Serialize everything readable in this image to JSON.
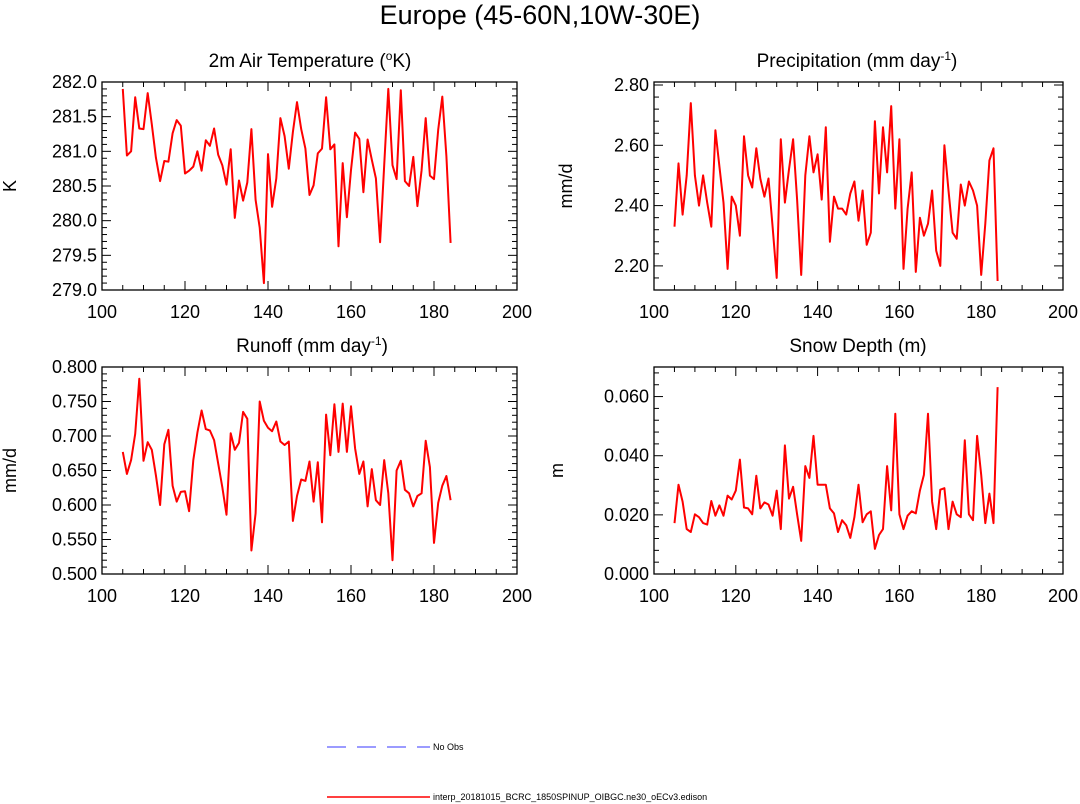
{
  "figure": {
    "title": "Europe (45-60N,10W-30E)",
    "legend": [
      {
        "label": "No Obs",
        "color": "#7a7aff",
        "style": "dashed"
      },
      {
        "label": "interp_20181015_BCRC_1850SPINUP_OIBGC.ne30_oECv3.edison",
        "color": "#ff0000",
        "style": "solid"
      }
    ]
  },
  "chart_data": [
    {
      "type": "line",
      "title": "2m Air Temperature (ºK)",
      "title_main": "2m Air Temperature (",
      "title_sup": "o",
      "title_tail": "K)",
      "ylabel": "K",
      "xlim": [
        100,
        200
      ],
      "ylim": [
        279.0,
        282.0
      ],
      "xticks": [
        100,
        120,
        140,
        160,
        180,
        200
      ],
      "yticks": [
        "279.0",
        "279.5",
        "280.0",
        "280.5",
        "281.0",
        "281.5",
        "282.0"
      ],
      "series": [
        {
          "color": "#ff0000",
          "x_start": 105,
          "values": [
            281.9,
            280.94,
            281.0,
            281.78,
            281.33,
            281.32,
            281.84,
            281.39,
            280.91,
            280.57,
            280.86,
            280.85,
            281.26,
            281.45,
            281.37,
            280.68,
            280.72,
            280.78,
            281.0,
            280.72,
            281.16,
            281.08,
            281.33,
            280.95,
            280.8,
            280.52,
            281.03,
            280.04,
            280.58,
            280.29,
            280.55,
            281.32,
            280.3,
            279.9,
            279.1,
            280.96,
            280.2,
            280.61,
            281.48,
            281.22,
            280.75,
            281.28,
            281.71,
            281.32,
            281.04,
            280.37,
            280.51,
            280.97,
            281.04,
            281.78,
            281.03,
            281.1,
            279.63,
            280.83,
            280.05,
            280.73,
            281.27,
            281.18,
            280.41,
            281.17,
            280.88,
            280.61,
            279.69,
            280.8,
            281.9,
            280.8,
            280.6,
            281.88,
            280.57,
            280.5,
            280.92,
            280.21,
            280.73,
            281.48,
            280.65,
            280.6,
            281.31,
            281.79,
            280.93,
            279.68
          ]
        }
      ]
    },
    {
      "type": "line",
      "title": "Precipitation (mm day⁻¹)",
      "title_main": "Precipitation (mm day",
      "title_sup": "-1",
      "title_tail": ")",
      "ylabel": "mm/d",
      "xlim": [
        100,
        200
      ],
      "ylim": [
        2.12,
        2.81
      ],
      "xticks": [
        100,
        120,
        140,
        160,
        180,
        200
      ],
      "yticks": [
        "2.20",
        "2.40",
        "2.60",
        "2.80"
      ],
      "series": [
        {
          "color": "#ff0000",
          "x_start": 105,
          "values": [
            2.33,
            2.54,
            2.37,
            2.5,
            2.74,
            2.5,
            2.4,
            2.5,
            2.41,
            2.33,
            2.65,
            2.53,
            2.41,
            2.19,
            2.43,
            2.4,
            2.3,
            2.63,
            2.5,
            2.46,
            2.59,
            2.49,
            2.43,
            2.49,
            2.33,
            2.16,
            2.62,
            2.41,
            2.52,
            2.62,
            2.42,
            2.17,
            2.5,
            2.63,
            2.51,
            2.57,
            2.42,
            2.66,
            2.28,
            2.43,
            2.39,
            2.39,
            2.37,
            2.44,
            2.48,
            2.35,
            2.45,
            2.27,
            2.31,
            2.68,
            2.44,
            2.66,
            2.51,
            2.73,
            2.39,
            2.62,
            2.19,
            2.39,
            2.51,
            2.18,
            2.36,
            2.3,
            2.34,
            2.45,
            2.25,
            2.2,
            2.6,
            2.45,
            2.31,
            2.29,
            2.47,
            2.4,
            2.48,
            2.45,
            2.4,
            2.17,
            2.34,
            2.55,
            2.59,
            2.15
          ]
        }
      ]
    },
    {
      "type": "line",
      "title": "Runoff (mm day⁻¹)",
      "title_main": "Runoff (mm day",
      "title_sup": "-1",
      "title_tail": ")",
      "ylabel": "mm/d",
      "xlim": [
        100,
        200
      ],
      "ylim": [
        0.5,
        0.8
      ],
      "xticks": [
        100,
        120,
        140,
        160,
        180,
        200
      ],
      "yticks": [
        "0.500",
        "0.550",
        "0.600",
        "0.650",
        "0.700",
        "0.750",
        "0.800"
      ],
      "series": [
        {
          "color": "#ff0000",
          "x_start": 105,
          "values": [
            0.677,
            0.645,
            0.665,
            0.703,
            0.783,
            0.664,
            0.691,
            0.68,
            0.643,
            0.6,
            0.688,
            0.709,
            0.628,
            0.605,
            0.619,
            0.62,
            0.591,
            0.665,
            0.705,
            0.737,
            0.71,
            0.708,
            0.694,
            0.66,
            0.626,
            0.586,
            0.704,
            0.68,
            0.69,
            0.735,
            0.725,
            0.534,
            0.588,
            0.75,
            0.722,
            0.712,
            0.707,
            0.721,
            0.692,
            0.687,
            0.692,
            0.577,
            0.613,
            0.637,
            0.635,
            0.663,
            0.605,
            0.662,
            0.575,
            0.731,
            0.672,
            0.746,
            0.677,
            0.747,
            0.677,
            0.743,
            0.682,
            0.645,
            0.663,
            0.598,
            0.652,
            0.607,
            0.6,
            0.665,
            0.617,
            0.52,
            0.65,
            0.664,
            0.622,
            0.617,
            0.598,
            0.613,
            0.617,
            0.693,
            0.655,
            0.545,
            0.603,
            0.628,
            0.642,
            0.607
          ]
        }
      ]
    },
    {
      "type": "line",
      "title": "Snow Depth (m)",
      "title_main": "Snow Depth (m)",
      "title_sup": "",
      "title_tail": "",
      "ylabel": "m",
      "xlim": [
        100,
        200
      ],
      "ylim": [
        0.0,
        0.07
      ],
      "xticks": [
        100,
        120,
        140,
        160,
        180,
        200
      ],
      "yticks": [
        "0.000",
        "0.020",
        "0.040",
        "0.060"
      ],
      "series": [
        {
          "color": "#ff0000",
          "x_start": 105,
          "values": [
            0.0172,
            0.0302,
            0.0245,
            0.0152,
            0.0142,
            0.0202,
            0.0192,
            0.0172,
            0.0167,
            0.0247,
            0.0197,
            0.0232,
            0.0197,
            0.0265,
            0.0252,
            0.0282,
            0.0387,
            0.0225,
            0.0222,
            0.0202,
            0.0332,
            0.0222,
            0.0242,
            0.0235,
            0.0197,
            0.0282,
            0.0152,
            0.0435,
            0.0255,
            0.0295,
            0.0202,
            0.0112,
            0.0365,
            0.0325,
            0.0467,
            0.0302,
            0.0302,
            0.0302,
            0.0222,
            0.0205,
            0.0142,
            0.0182,
            0.0165,
            0.0122,
            0.0192,
            0.0302,
            0.0175,
            0.0202,
            0.0212,
            0.0085,
            0.0132,
            0.0152,
            0.0365,
            0.0215,
            0.0542,
            0.0202,
            0.0152,
            0.0197,
            0.0212,
            0.0205,
            0.0282,
            0.0335,
            0.0542,
            0.0245,
            0.0152,
            0.0285,
            0.029,
            0.0152,
            0.0245,
            0.0202,
            0.0192,
            0.0452,
            0.0202,
            0.0182,
            0.0467,
            0.0335,
            0.0172,
            0.0272,
            0.0172,
            0.0632
          ]
        }
      ]
    }
  ]
}
